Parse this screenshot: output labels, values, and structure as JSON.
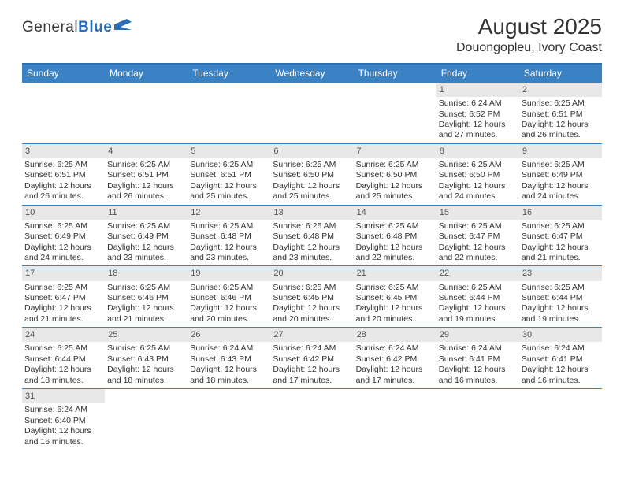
{
  "logo": {
    "word1": "General",
    "word2": "Blue"
  },
  "title": "August 2025",
  "location": "Douongopleu, Ivory Coast",
  "colors": {
    "header_bg": "#3b82c4",
    "border": "#2a6db5",
    "daynum_bg": "#e8e8e8",
    "page_bg": "#ffffff",
    "text": "#333333"
  },
  "day_names": [
    "Sunday",
    "Monday",
    "Tuesday",
    "Wednesday",
    "Thursday",
    "Friday",
    "Saturday"
  ],
  "weeks": [
    [
      {
        "empty": true
      },
      {
        "empty": true
      },
      {
        "empty": true
      },
      {
        "empty": true
      },
      {
        "empty": true
      },
      {
        "day": "1",
        "sunrise": "6:24 AM",
        "sunset": "6:52 PM",
        "daylight": "12 hours and 27 minutes."
      },
      {
        "day": "2",
        "sunrise": "6:25 AM",
        "sunset": "6:51 PM",
        "daylight": "12 hours and 26 minutes."
      }
    ],
    [
      {
        "day": "3",
        "sunrise": "6:25 AM",
        "sunset": "6:51 PM",
        "daylight": "12 hours and 26 minutes."
      },
      {
        "day": "4",
        "sunrise": "6:25 AM",
        "sunset": "6:51 PM",
        "daylight": "12 hours and 26 minutes."
      },
      {
        "day": "5",
        "sunrise": "6:25 AM",
        "sunset": "6:51 PM",
        "daylight": "12 hours and 25 minutes."
      },
      {
        "day": "6",
        "sunrise": "6:25 AM",
        "sunset": "6:50 PM",
        "daylight": "12 hours and 25 minutes."
      },
      {
        "day": "7",
        "sunrise": "6:25 AM",
        "sunset": "6:50 PM",
        "daylight": "12 hours and 25 minutes."
      },
      {
        "day": "8",
        "sunrise": "6:25 AM",
        "sunset": "6:50 PM",
        "daylight": "12 hours and 24 minutes."
      },
      {
        "day": "9",
        "sunrise": "6:25 AM",
        "sunset": "6:49 PM",
        "daylight": "12 hours and 24 minutes."
      }
    ],
    [
      {
        "day": "10",
        "sunrise": "6:25 AM",
        "sunset": "6:49 PM",
        "daylight": "12 hours and 24 minutes."
      },
      {
        "day": "11",
        "sunrise": "6:25 AM",
        "sunset": "6:49 PM",
        "daylight": "12 hours and 23 minutes."
      },
      {
        "day": "12",
        "sunrise": "6:25 AM",
        "sunset": "6:48 PM",
        "daylight": "12 hours and 23 minutes."
      },
      {
        "day": "13",
        "sunrise": "6:25 AM",
        "sunset": "6:48 PM",
        "daylight": "12 hours and 23 minutes."
      },
      {
        "day": "14",
        "sunrise": "6:25 AM",
        "sunset": "6:48 PM",
        "daylight": "12 hours and 22 minutes."
      },
      {
        "day": "15",
        "sunrise": "6:25 AM",
        "sunset": "6:47 PM",
        "daylight": "12 hours and 22 minutes."
      },
      {
        "day": "16",
        "sunrise": "6:25 AM",
        "sunset": "6:47 PM",
        "daylight": "12 hours and 21 minutes."
      }
    ],
    [
      {
        "day": "17",
        "sunrise": "6:25 AM",
        "sunset": "6:47 PM",
        "daylight": "12 hours and 21 minutes."
      },
      {
        "day": "18",
        "sunrise": "6:25 AM",
        "sunset": "6:46 PM",
        "daylight": "12 hours and 21 minutes."
      },
      {
        "day": "19",
        "sunrise": "6:25 AM",
        "sunset": "6:46 PM",
        "daylight": "12 hours and 20 minutes."
      },
      {
        "day": "20",
        "sunrise": "6:25 AM",
        "sunset": "6:45 PM",
        "daylight": "12 hours and 20 minutes."
      },
      {
        "day": "21",
        "sunrise": "6:25 AM",
        "sunset": "6:45 PM",
        "daylight": "12 hours and 20 minutes."
      },
      {
        "day": "22",
        "sunrise": "6:25 AM",
        "sunset": "6:44 PM",
        "daylight": "12 hours and 19 minutes."
      },
      {
        "day": "23",
        "sunrise": "6:25 AM",
        "sunset": "6:44 PM",
        "daylight": "12 hours and 19 minutes."
      }
    ],
    [
      {
        "day": "24",
        "sunrise": "6:25 AM",
        "sunset": "6:44 PM",
        "daylight": "12 hours and 18 minutes."
      },
      {
        "day": "25",
        "sunrise": "6:25 AM",
        "sunset": "6:43 PM",
        "daylight": "12 hours and 18 minutes."
      },
      {
        "day": "26",
        "sunrise": "6:24 AM",
        "sunset": "6:43 PM",
        "daylight": "12 hours and 18 minutes."
      },
      {
        "day": "27",
        "sunrise": "6:24 AM",
        "sunset": "6:42 PM",
        "daylight": "12 hours and 17 minutes."
      },
      {
        "day": "28",
        "sunrise": "6:24 AM",
        "sunset": "6:42 PM",
        "daylight": "12 hours and 17 minutes."
      },
      {
        "day": "29",
        "sunrise": "6:24 AM",
        "sunset": "6:41 PM",
        "daylight": "12 hours and 16 minutes."
      },
      {
        "day": "30",
        "sunrise": "6:24 AM",
        "sunset": "6:41 PM",
        "daylight": "12 hours and 16 minutes."
      }
    ],
    [
      {
        "day": "31",
        "sunrise": "6:24 AM",
        "sunset": "6:40 PM",
        "daylight": "12 hours and 16 minutes."
      },
      {
        "empty": true
      },
      {
        "empty": true
      },
      {
        "empty": true
      },
      {
        "empty": true
      },
      {
        "empty": true
      },
      {
        "empty": true
      }
    ]
  ],
  "labels": {
    "sunrise": "Sunrise:",
    "sunset": "Sunset:",
    "daylight": "Daylight:"
  }
}
